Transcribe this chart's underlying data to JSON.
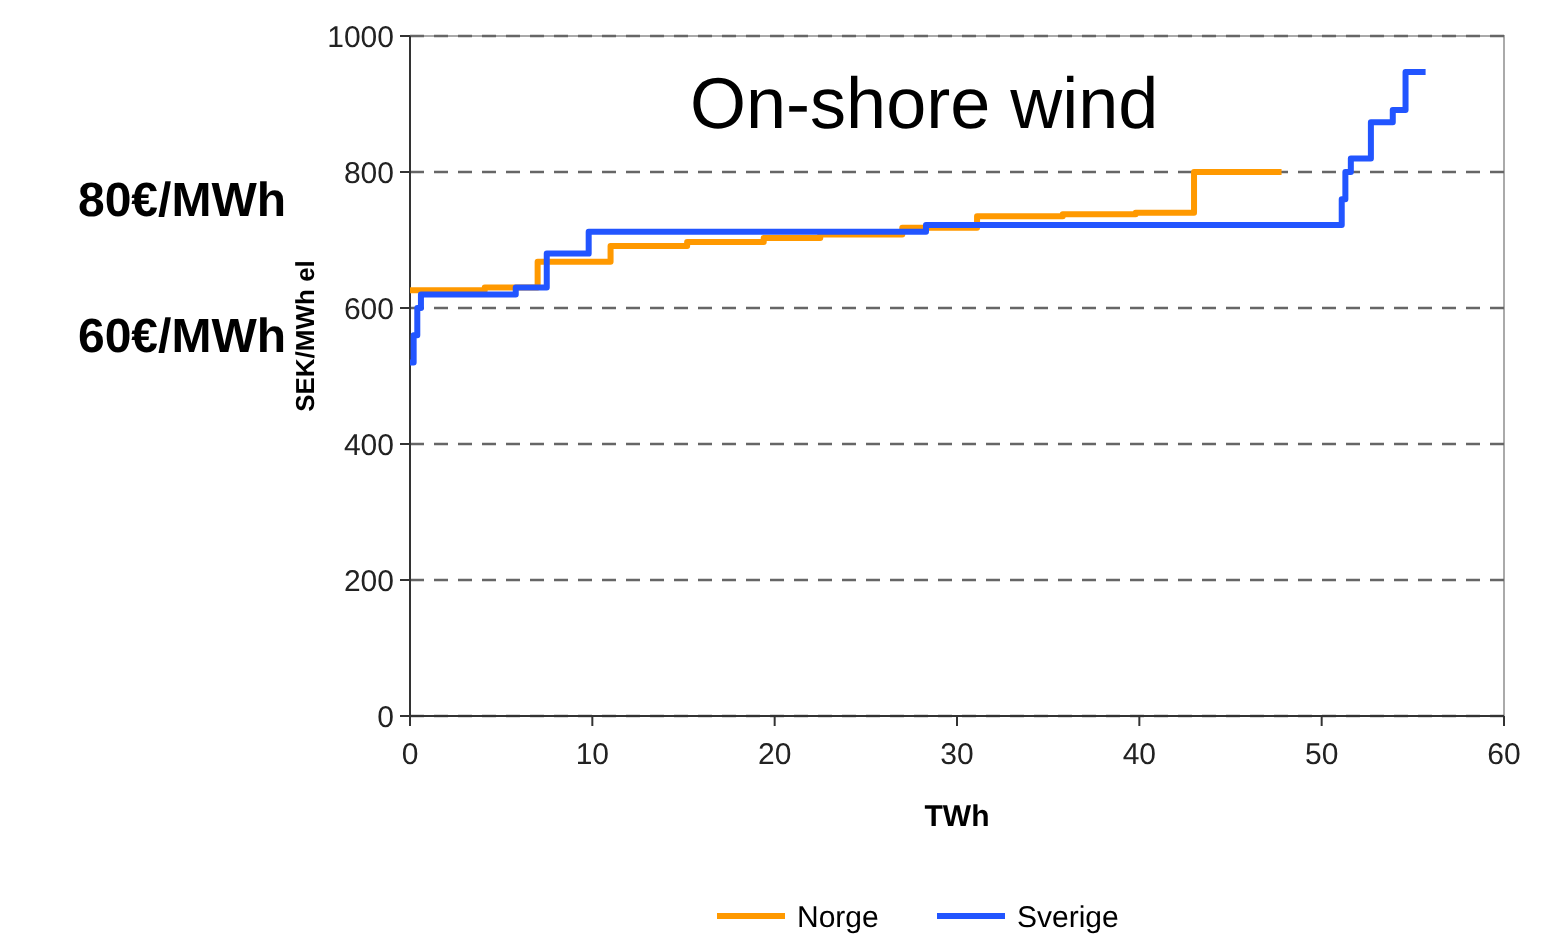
{
  "chart_data": {
    "type": "step",
    "title": "On-shore wind",
    "xlabel": "TWh",
    "ylabel": "SEK/MWh el",
    "annotations": [
      "80€/MWh",
      "60€/MWh"
    ],
    "xlim": [
      0,
      60
    ],
    "xticks": [
      0,
      10,
      20,
      30,
      40,
      50,
      60
    ],
    "ylim": [
      0,
      1000
    ],
    "yticks": [
      0,
      200,
      400,
      600,
      800,
      1000
    ],
    "grid": "y",
    "legend": "bottom",
    "line_style": "solid",
    "series": [
      {
        "name": "Norge",
        "color": "#ff9900",
        "x": [
          0,
          4.1,
          7.0,
          7.7,
          11.0,
          15.2,
          19.4,
          22.5,
          27.0,
          31.1,
          35.8,
          39.8,
          43.0,
          47.8
        ],
        "values": [
          626,
          630,
          668,
          668,
          691,
          697,
          703,
          708,
          718,
          735,
          738,
          740,
          800,
          800
        ]
      },
      {
        "name": "Sverige",
        "color": "#2255ff",
        "x": [
          0,
          0.2,
          0.4,
          0.6,
          5.8,
          7.5,
          9.8,
          28.3,
          51.1,
          51.3,
          51.6,
          52.7,
          53.9,
          54.6,
          55.7
        ],
        "values": [
          520,
          560,
          600,
          620,
          630,
          680,
          712,
          722,
          760,
          800,
          820,
          873,
          891,
          947,
          947
        ]
      }
    ]
  }
}
